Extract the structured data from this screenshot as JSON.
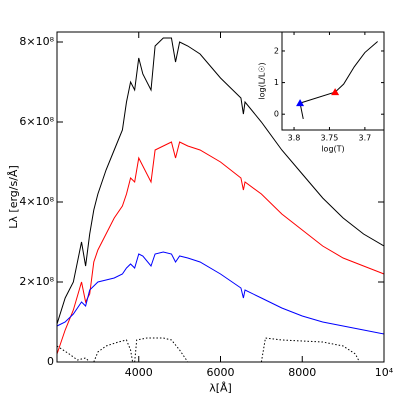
{
  "chart_data": [
    {
      "type": "line",
      "xlabel": "λ[Å]",
      "ylabel": "Lλ [erg/s/Å]",
      "xlim": [
        2000,
        10000
      ],
      "ylim": [
        0,
        825000000
      ],
      "xticks": [
        4000,
        6000,
        8000,
        {
          "value": 10000,
          "label": "10⁴"
        }
      ],
      "yticks": [
        0,
        {
          "value": 200000000.0,
          "label": "2×10⁸"
        },
        {
          "value": 400000000.0,
          "label": "4×10⁸"
        },
        {
          "value": 600000000.0,
          "label": "6×10⁸"
        },
        {
          "value": 800000000.0,
          "label": "8×10⁸"
        }
      ],
      "x": [
        2000,
        2200,
        2400,
        2600,
        2700,
        2800,
        2900,
        3000,
        3200,
        3400,
        3600,
        3700,
        3800,
        3900,
        4000,
        4100,
        4300,
        4400,
        4600,
        4800,
        4900,
        5000,
        5200,
        5500,
        6000,
        6500,
        6560,
        6600,
        7000,
        7500,
        8000,
        8500,
        9000,
        9500,
        10000
      ],
      "series": [
        {
          "color": "#000000",
          "values": [
            95000000.0,
            160000000.0,
            200000000.0,
            300000000.0,
            240000000.0,
            320000000.0,
            380000000.0,
            420000000.0,
            480000000.0,
            530000000.0,
            580000000.0,
            650000000.0,
            700000000.0,
            680000000.0,
            760000000.0,
            720000000.0,
            680000000.0,
            790000000.0,
            810000000.0,
            810000000.0,
            750000000.0,
            800000000.0,
            790000000.0,
            770000000.0,
            710000000.0,
            660000000.0,
            620000000.0,
            650000000.0,
            600000000.0,
            530000000.0,
            470000000.0,
            410000000.0,
            360000000.0,
            320000000.0,
            290000000.0
          ]
        },
        {
          "color": "#ff0000",
          "values": [
            20000000.0,
            80000000.0,
            130000000.0,
            200000000.0,
            150000000.0,
            170000000.0,
            250000000.0,
            280000000.0,
            320000000.0,
            360000000.0,
            390000000.0,
            420000000.0,
            460000000.0,
            450000000.0,
            510000000.0,
            490000000.0,
            450000000.0,
            530000000.0,
            540000000.0,
            550000000.0,
            510000000.0,
            550000000.0,
            540000000.0,
            530000000.0,
            500000000.0,
            460000000.0,
            430000000.0,
            450000000.0,
            420000000.0,
            370000000.0,
            330000000.0,
            290000000.0,
            260000000.0,
            240000000.0,
            220000000.0
          ]
        },
        {
          "color": "#0000ff",
          "values": [
            90000000.0,
            100000000.0,
            120000000.0,
            150000000.0,
            140000000.0,
            180000000.0,
            190000000.0,
            200000000.0,
            205000000.0,
            210000000.0,
            220000000.0,
            235000000.0,
            245000000.0,
            235000000.0,
            270000000.0,
            265000000.0,
            240000000.0,
            270000000.0,
            275000000.0,
            270000000.0,
            250000000.0,
            265000000.0,
            260000000.0,
            250000000.0,
            220000000.0,
            185000000.0,
            160000000.0,
            180000000.0,
            160000000.0,
            135000000.0,
            115000000.0,
            100000000.0,
            90000000.0,
            80000000.0,
            70000000.0
          ]
        },
        {
          "color": "#000000",
          "dotted": true,
          "x": [
            2000,
            2300,
            2500,
            2700,
            2800
          ],
          "values": [
            40000000.0,
            20000000.0,
            5000000.0,
            10000000.0,
            0
          ]
        },
        {
          "color": "#000000",
          "dotted": true,
          "x": [
            2900,
            3000,
            3200,
            3500,
            3700,
            3800,
            3850
          ],
          "values": [
            0,
            25000000.0,
            40000000.0,
            50000000.0,
            55000000.0,
            30000000.0,
            0
          ]
        },
        {
          "color": "#000000",
          "dotted": true,
          "x": [
            3900,
            3950,
            4200,
            4600,
            4800,
            5000,
            5200
          ],
          "values": [
            0,
            55000000.0,
            60000000.0,
            60000000.0,
            55000000.0,
            30000000.0,
            0
          ]
        },
        {
          "color": "#000000",
          "dotted": true,
          "x": [
            7000,
            7100,
            7500,
            8500,
            9000,
            9300,
            9400
          ],
          "values": [
            0,
            60000000.0,
            55000000.0,
            50000000.0,
            40000000.0,
            20000000.0,
            0
          ]
        }
      ]
    },
    {
      "type": "line",
      "xlabel": "log(T)",
      "ylabel": "log(L/L☉)",
      "xlim": [
        3.817,
        3.673
      ],
      "ylim": [
        -0.5,
        2.6
      ],
      "xticks": [
        3.8,
        3.75,
        3.7
      ],
      "yticks": [
        0,
        1,
        2
      ],
      "x": [
        3.787,
        3.7915,
        3.742,
        3.73,
        3.715,
        3.7,
        3.682
      ],
      "series": [
        {
          "color": "#000000",
          "values": [
            -0.15,
            0.35,
            0.7,
            0.95,
            1.5,
            1.95,
            2.3
          ]
        }
      ],
      "markers": [
        {
          "x": 3.7915,
          "y": 0.35,
          "color": "#0000ff"
        },
        {
          "x": 3.742,
          "y": 0.7,
          "color": "#ff0000"
        }
      ]
    }
  ]
}
